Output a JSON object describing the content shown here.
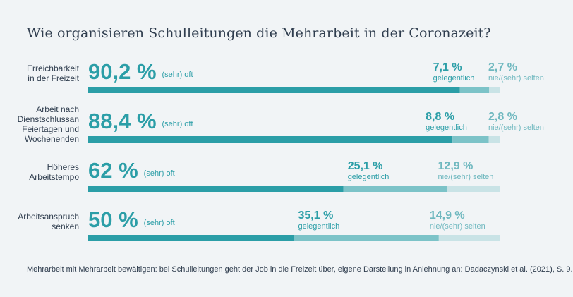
{
  "chart_data": {
    "type": "bar",
    "title": "Wie organisieren Schulleitungen die Mehrarbeit in der Coronazeit?",
    "series": [
      {
        "name": "(sehr) oft",
        "color": "#2b9ea7"
      },
      {
        "name": "gelegentlich",
        "color": "#7cc3c8"
      },
      {
        "name": "nie/(sehr) selten",
        "color": "#c9e3e6"
      }
    ],
    "categories": [
      {
        "label_lines": [
          "Erreichbarkeit",
          "in der Freizeit"
        ],
        "values": [
          90.2,
          7.1,
          2.7
        ],
        "value_labels": [
          "90,2 %",
          "7,1 %",
          "2,7 %"
        ]
      },
      {
        "label_lines": [
          "Arbeit nach",
          "Dienstschlussan",
          "Feiertagen und",
          "Wochenenden"
        ],
        "values": [
          88.4,
          8.8,
          2.8
        ],
        "value_labels": [
          "88,4 %",
          "8,8 %",
          "2,8 %"
        ]
      },
      {
        "label_lines": [
          "Höheres",
          "Arbeitstempo"
        ],
        "values": [
          62,
          25.1,
          12.9
        ],
        "value_labels": [
          "62 %",
          "25,1 %",
          "12,9 %"
        ]
      },
      {
        "label_lines": [
          "Arbeitsanspruch",
          "senken"
        ],
        "values": [
          50,
          35.1,
          14.9
        ],
        "value_labels": [
          "50 %",
          "35,1 %",
          "14,9 %"
        ]
      }
    ],
    "scale_max": 100,
    "caption": "Mehrarbeit mit Mehrarbeit bewältigen: bei Schulleitungen geht der Job in die Freizeit über, eigene Darstellung in Anlehnung an: Dadaczynski et al. (2021), S. 9."
  }
}
